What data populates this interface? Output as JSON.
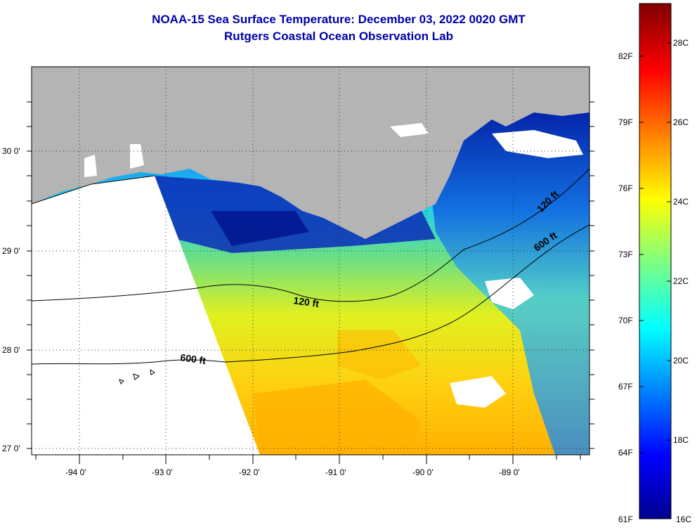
{
  "header": {
    "title": "NOAA-15 Sea Surface Temperature:  December 03, 2022 0020 GMT",
    "subtitle": "Rutgers Coastal Ocean Observation Lab"
  },
  "map": {
    "lat_labels": [
      "30 0'",
      "29 0'",
      "28 0'",
      "27 0'"
    ],
    "lon_labels": [
      "-94 0'",
      "-93 0'",
      "-92 0'",
      "-91 0'",
      "-90 0'",
      "-89 0'"
    ],
    "contour_labels": {
      "c120_west": "120 ft",
      "c600_west": "600 ft",
      "c120_east": "120 ft",
      "c600_east": "600 ft"
    },
    "colors": {
      "land": "#b4b4b4",
      "no_data": "#ffffff",
      "cold": "#00008c",
      "warm": "#ffd000"
    }
  },
  "colorbar": {
    "fahrenheit": [
      "82F",
      "79F",
      "76F",
      "73F",
      "70F",
      "67F",
      "64F",
      "61F"
    ],
    "celsius": [
      "28C",
      "26C",
      "24C",
      "22C",
      "20C",
      "18C",
      "16C"
    ],
    "range_c": [
      16,
      29
    ],
    "colormap": "jet"
  }
}
